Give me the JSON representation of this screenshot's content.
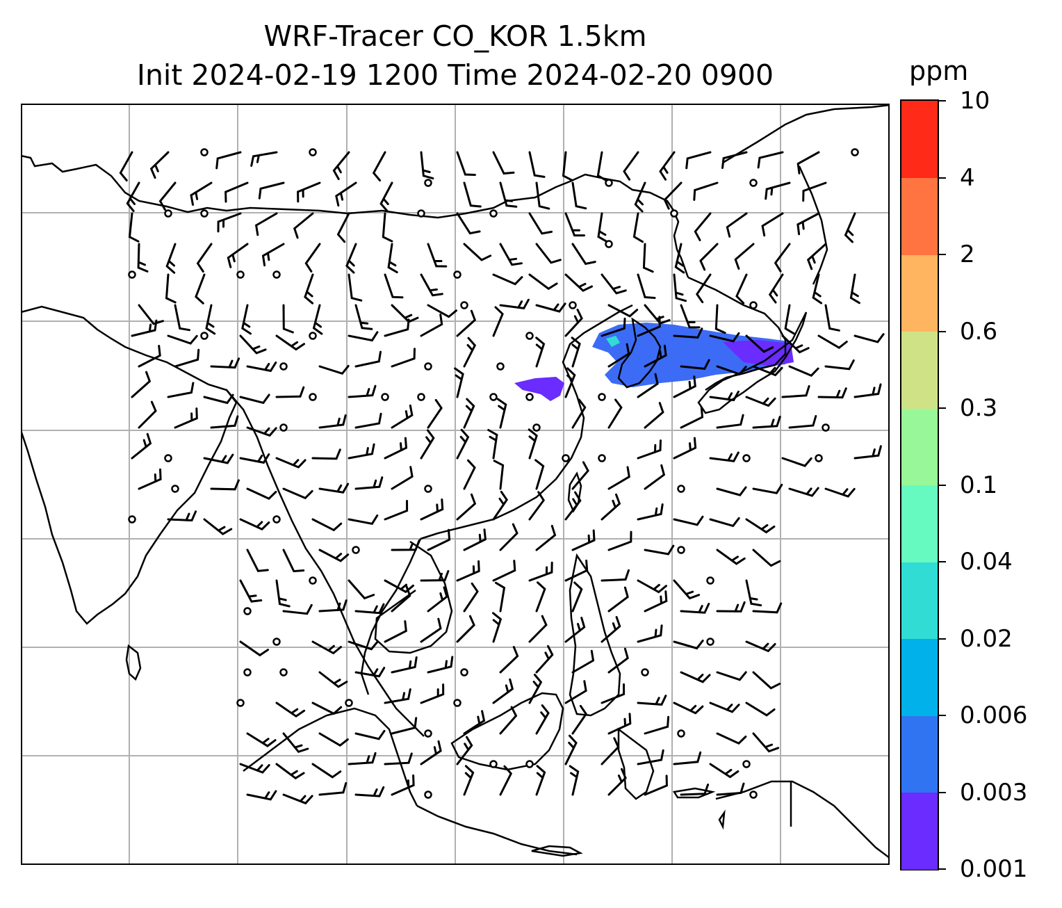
{
  "title": {
    "line1": "WRF-Tracer CO_KOR 1.5km",
    "line2": "Init 2024-02-19 1200 Time 2024-02-20 0900"
  },
  "colorbar": {
    "unit": "ppm",
    "levels": [
      "0.001",
      "0.003",
      "0.006",
      "0.02",
      "0.04",
      "0.1",
      "0.3",
      "0.6",
      "2",
      "4",
      "10"
    ],
    "colors": [
      "#6a2cff",
      "#3174f2",
      "#00b1ea",
      "#30dcd4",
      "#66fac0",
      "#98f899",
      "#cfe286",
      "#ffb460",
      "#ff7440",
      "#ff2a17"
    ]
  },
  "map": {
    "gridlines": true,
    "plume_color": "#4a5bff",
    "barb_color": "#000000"
  }
}
